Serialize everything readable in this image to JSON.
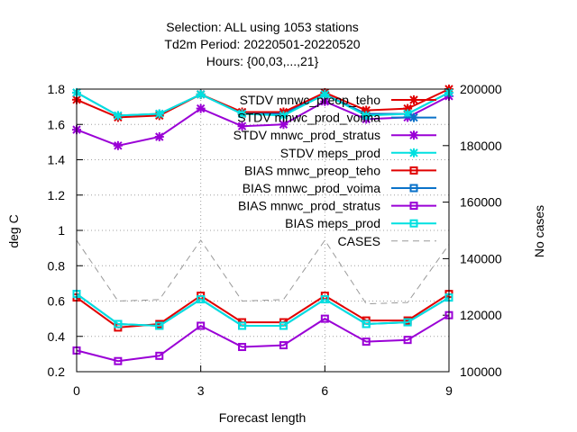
{
  "chart_data": {
    "type": "line",
    "title_lines": [
      "Selection: ALL using  1053 stations",
      "Td2m   Period: 20220501-20220520",
      "Hours: {00,03,...,21}"
    ],
    "xlabel": "Forecast length",
    "ylabel": "deg C",
    "y2label": "No cases",
    "xlim": [
      0,
      9
    ],
    "ylim": [
      0.2,
      1.8
    ],
    "y2lim": [
      100000,
      200000
    ],
    "xticks": [
      0,
      3,
      6,
      9
    ],
    "yticks": [
      0.2,
      0.4,
      0.6,
      0.8,
      1,
      1.2,
      1.4,
      1.6,
      1.8
    ],
    "y2ticks": [
      100000,
      120000,
      140000,
      160000,
      180000,
      200000
    ],
    "grid": true,
    "legend_position": "top-right",
    "x": [
      0,
      1,
      2,
      3,
      4,
      5,
      6,
      7,
      8,
      9
    ],
    "series": [
      {
        "name": "STDV mnwc_preop_teho",
        "color": "#e00000",
        "marker": "x",
        "axis": "y",
        "values": [
          1.74,
          1.64,
          1.65,
          1.77,
          1.67,
          1.67,
          1.78,
          1.68,
          1.69,
          1.8
        ]
      },
      {
        "name": "STDV mnwc_prod_voima",
        "color": "#0a72c9",
        "marker": "x",
        "axis": "y",
        "values": [
          1.78,
          1.65,
          1.66,
          1.77,
          1.66,
          1.66,
          1.77,
          1.66,
          1.66,
          1.78
        ]
      },
      {
        "name": "STDV mnwc_prod_stratus",
        "color": "#9a00d6",
        "marker": "x",
        "axis": "y",
        "values": [
          1.57,
          1.48,
          1.53,
          1.69,
          1.59,
          1.6,
          1.73,
          1.63,
          1.64,
          1.76
        ]
      },
      {
        "name": "STDV meps_prod",
        "color": "#00e0e0",
        "marker": "x",
        "axis": "y",
        "values": [
          1.78,
          1.65,
          1.66,
          1.77,
          1.66,
          1.65,
          1.77,
          1.65,
          1.66,
          1.78
        ]
      },
      {
        "name": "BIAS mnwc_preop_teho",
        "color": "#e00000",
        "marker": "square",
        "axis": "y",
        "values": [
          0.62,
          0.45,
          0.47,
          0.63,
          0.48,
          0.48,
          0.63,
          0.49,
          0.49,
          0.64
        ]
      },
      {
        "name": "BIAS mnwc_prod_voima",
        "color": "#0a72c9",
        "marker": "square",
        "axis": "y",
        "values": [
          0.64,
          0.47,
          0.46,
          0.61,
          0.46,
          0.46,
          0.61,
          0.47,
          0.48,
          0.62
        ]
      },
      {
        "name": "BIAS mnwc_prod_stratus",
        "color": "#9a00d6",
        "marker": "square",
        "axis": "y",
        "values": [
          0.32,
          0.26,
          0.29,
          0.46,
          0.34,
          0.35,
          0.5,
          0.37,
          0.38,
          0.52
        ]
      },
      {
        "name": "BIAS meps_prod",
        "color": "#00e0e0",
        "marker": "square",
        "axis": "y",
        "values": [
          0.64,
          0.47,
          0.46,
          0.61,
          0.46,
          0.46,
          0.61,
          0.47,
          0.48,
          0.62
        ]
      },
      {
        "name": "CASES",
        "color": "#999999",
        "marker": "none",
        "dash": true,
        "axis": "y2",
        "values": [
          146500,
          125000,
          125500,
          146500,
          125000,
          125500,
          146500,
          124000,
          124500,
          145000
        ]
      }
    ]
  }
}
